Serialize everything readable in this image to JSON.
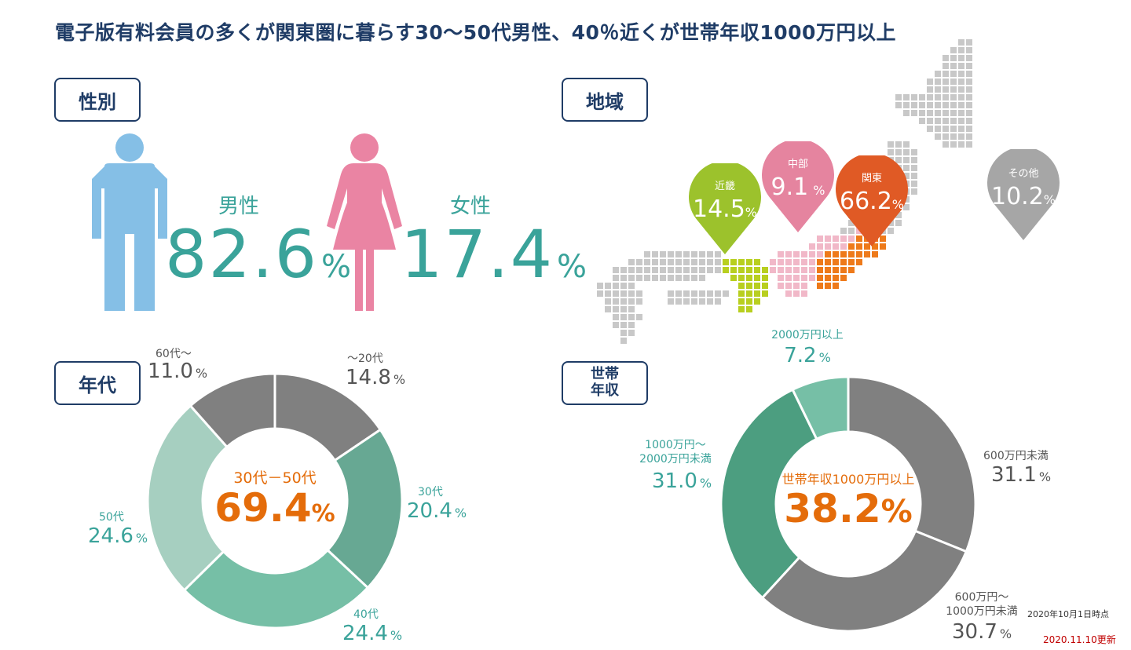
{
  "title": "電子版有料会員の多くが関東圏に暮らす30～50代男性、40％近くが世帯年収1000万円以上",
  "sections": {
    "gender": "性別",
    "region": "地域",
    "age": "年代",
    "income_line1": "世帯",
    "income_line2": "年収"
  },
  "gender": {
    "male_label": "男性",
    "male_value": "82.6",
    "female_label": "女性",
    "female_value": "17.4",
    "unit": "%"
  },
  "region": {
    "pins": [
      {
        "label": "近畿",
        "value": "14.5",
        "unit": "%",
        "color": "#9cc22c"
      },
      {
        "label": "中部",
        "value": "9.1",
        "unit": "%",
        "color": "#e5849f"
      },
      {
        "label": "関東",
        "value": "66.2",
        "unit": "%",
        "color": "#e05a25"
      },
      {
        "label": "その他",
        "value": "10.2",
        "unit": "%",
        "color": "#a6a6a6"
      }
    ]
  },
  "age": {
    "center_label": "30代－50代",
    "center_value": "69.4",
    "center_unit": "%",
    "labels": [
      {
        "name": "～20代",
        "value": "14.8",
        "unit": "%"
      },
      {
        "name": "30代",
        "value": "20.4",
        "unit": "%"
      },
      {
        "name": "40代",
        "value": "24.4",
        "unit": "%"
      },
      {
        "name": "50代",
        "value": "24.6",
        "unit": "%"
      },
      {
        "name": "60代～",
        "value": "11.0",
        "unit": "%"
      }
    ]
  },
  "income": {
    "center_label": "世帯年収1000万円以上",
    "center_value": "38.2",
    "center_unit": "%",
    "labels": [
      {
        "name": "600万円未満",
        "value": "31.1",
        "unit": "%"
      },
      {
        "name1": "600万円～",
        "name2": "1000万円未満",
        "value": "30.7",
        "unit": "%"
      },
      {
        "name1": "1000万円～",
        "name2": "2000万円未満",
        "value": "31.0",
        "unit": "%"
      },
      {
        "name": "2000万円以上",
        "value": "7.2",
        "unit": "%"
      }
    ]
  },
  "footer": {
    "as_of": "2020年10月1日時点",
    "updated": "2020.11.10更新"
  },
  "chart_data": [
    {
      "type": "pie",
      "categories": [
        "～20代",
        "30代",
        "40代",
        "50代",
        "60代～"
      ],
      "values": [
        14.8,
        20.4,
        24.4,
        24.6,
        11.0
      ],
      "colors": [
        "#808080",
        "#67a893",
        "#76bfa6",
        "#a6cfc0",
        "#808080"
      ]
    },
    {
      "type": "pie",
      "categories": [
        "600万円未満",
        "600万円～1000万円未満",
        "1000万円～2000万円未満",
        "2000万円以上"
      ],
      "values": [
        31.1,
        30.7,
        31.0,
        7.2
      ],
      "colors": [
        "#808080",
        "#808080",
        "#4c9e80",
        "#76bfa6"
      ]
    }
  ]
}
